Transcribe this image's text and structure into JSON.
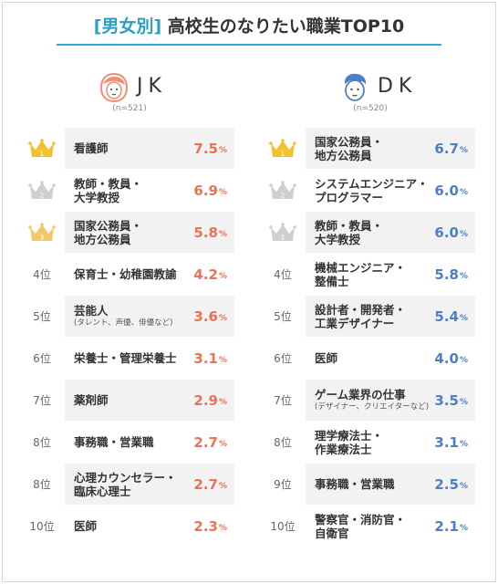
{
  "title": {
    "open_bracket": "[",
    "category": "男女別",
    "close_bracket": "]",
    "main": "高校生のなりたい職業TOP10"
  },
  "chart_data": [
    {
      "type": "table",
      "group": "JK",
      "sample": "(n=521)",
      "unit": "%",
      "rows": [
        {
          "rank": 1,
          "rank_label": "",
          "crown": "gold",
          "job": [
            "看護師"
          ],
          "note": "",
          "value": 7.5
        },
        {
          "rank": 2,
          "rank_label": "",
          "crown": "silver",
          "job": [
            "教師・教員・",
            "大学教授"
          ],
          "note": "",
          "value": 6.9
        },
        {
          "rank": 3,
          "rank_label": "",
          "crown": "bronze",
          "job": [
            "国家公務員・",
            "地方公務員"
          ],
          "note": "",
          "value": 5.8
        },
        {
          "rank": 4,
          "rank_label": "4位",
          "crown": "",
          "job": [
            "保育士・幼稚園教諭"
          ],
          "note": "",
          "value": 4.2
        },
        {
          "rank": 5,
          "rank_label": "5位",
          "crown": "",
          "job": [
            "芸能人"
          ],
          "note": "(タレント、声優、俳優など)",
          "value": 3.6
        },
        {
          "rank": 6,
          "rank_label": "6位",
          "crown": "",
          "job": [
            "栄養士・管理栄養士"
          ],
          "note": "",
          "value": 3.1
        },
        {
          "rank": 7,
          "rank_label": "7位",
          "crown": "",
          "job": [
            "薬剤師"
          ],
          "note": "",
          "value": 2.9
        },
        {
          "rank": 8,
          "rank_label": "8位",
          "crown": "",
          "job": [
            "事務職・営業職"
          ],
          "note": "",
          "value": 2.7
        },
        {
          "rank": 8,
          "rank_label": "8位",
          "crown": "",
          "job": [
            "心理カウンセラー・",
            "臨床心理士"
          ],
          "note": "",
          "value": 2.7
        },
        {
          "rank": 10,
          "rank_label": "10位",
          "crown": "",
          "job": [
            "医師"
          ],
          "note": "",
          "value": 2.3
        }
      ]
    },
    {
      "type": "table",
      "group": "DK",
      "sample": "(n=520)",
      "unit": "%",
      "rows": [
        {
          "rank": 1,
          "rank_label": "",
          "crown": "gold",
          "job": [
            "国家公務員・",
            "地方公務員"
          ],
          "note": "",
          "value": 6.7
        },
        {
          "rank": 2,
          "rank_label": "",
          "crown": "silver",
          "job": [
            "システムエンジニア・",
            "プログラマー"
          ],
          "note": "",
          "value": 6.0
        },
        {
          "rank": 2,
          "rank_label": "",
          "crown": "silver",
          "job": [
            "教師・教員・",
            "大学教授"
          ],
          "note": "",
          "value": 6.0
        },
        {
          "rank": 4,
          "rank_label": "4位",
          "crown": "",
          "job": [
            "機械エンジニア・",
            "整備士"
          ],
          "note": "",
          "value": 5.8
        },
        {
          "rank": 5,
          "rank_label": "5位",
          "crown": "",
          "job": [
            "設計者・開発者・",
            "工業デザイナー"
          ],
          "note": "",
          "value": 5.4
        },
        {
          "rank": 6,
          "rank_label": "6位",
          "crown": "",
          "job": [
            "医師"
          ],
          "note": "",
          "value": 4.0
        },
        {
          "rank": 7,
          "rank_label": "7位",
          "crown": "",
          "job": [
            "ゲーム業界の仕事"
          ],
          "note": "(デザイナー、クリエイターなど)",
          "value": 3.5
        },
        {
          "rank": 8,
          "rank_label": "8位",
          "crown": "",
          "job": [
            "理学療法士・",
            "作業療法士"
          ],
          "note": "",
          "value": 3.1
        },
        {
          "rank": 9,
          "rank_label": "9位",
          "crown": "",
          "job": [
            "事務職・営業職"
          ],
          "note": "",
          "value": 2.5
        },
        {
          "rank": 10,
          "rank_label": "10位",
          "crown": "",
          "job": [
            "警察官・消防官・",
            "自衛官"
          ],
          "note": "",
          "value": 2.1
        }
      ]
    }
  ],
  "colors": {
    "accent": "#29aad3",
    "jk_value": "#ec7256",
    "dk_value": "#4e7fc6",
    "crown_gold": "#f2c22e",
    "crown_silver": "#cfcfcf",
    "crown_bronze": "#f3c86a",
    "jk_avatar": "#f08c6f",
    "dk_avatar": "#4e7fc6"
  }
}
